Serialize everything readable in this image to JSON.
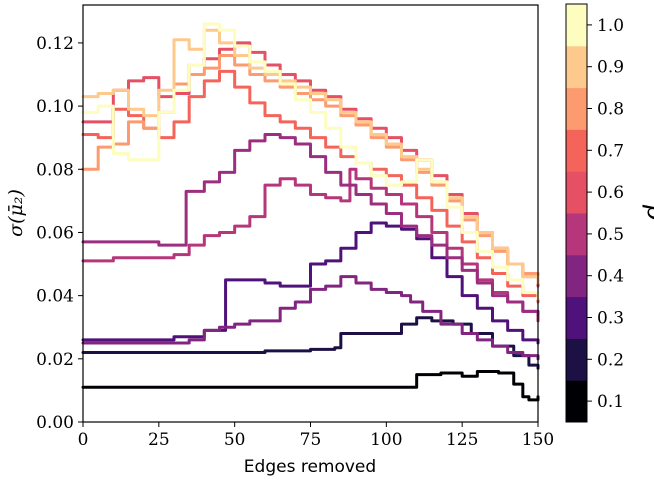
{
  "chart_data": {
    "type": "line",
    "xlabel": "Edges removed",
    "ylabel": "σ(μ̄₂)",
    "xlim": [
      0,
      150
    ],
    "ylim": [
      0,
      0.132
    ],
    "xticks": [
      0,
      25,
      50,
      75,
      100,
      125,
      150
    ],
    "xtick_labels": [
      "0",
      "25",
      "50",
      "75",
      "100",
      "125",
      "150"
    ],
    "yticks": [
      0.0,
      0.02,
      0.04,
      0.06,
      0.08,
      0.1,
      0.12
    ],
    "ytick_labels": [
      "0.00",
      "0.02",
      "0.04",
      "0.06",
      "0.08",
      "0.10",
      "0.12"
    ],
    "grid": false,
    "colormap": "magma",
    "colorbar": {
      "title": "p",
      "labels": [
        "0.1",
        "0.2",
        "0.3",
        "0.4",
        "0.5",
        "0.6",
        "0.7",
        "0.8",
        "0.9",
        "1.0"
      ],
      "colors": [
        "#000004",
        "#1c1044",
        "#4f127b",
        "#812581",
        "#b5367a",
        "#e55064",
        "#f4645a",
        "#fb9b6f",
        "#fec98d",
        "#fcfdbf"
      ]
    },
    "series": [
      {
        "color": "#000004",
        "points": [
          [
            0,
            0.011
          ],
          [
            30,
            0.011
          ],
          [
            60,
            0.011
          ],
          [
            90,
            0.011
          ],
          [
            105,
            0.011
          ],
          [
            110,
            0.015
          ],
          [
            118,
            0.0155
          ],
          [
            125,
            0.0145
          ],
          [
            130,
            0.016
          ],
          [
            137,
            0.0155
          ],
          [
            142,
            0.012
          ],
          [
            145,
            0.008
          ],
          [
            147,
            0.007
          ],
          [
            150,
            0.008
          ]
        ]
      },
      {
        "color": "#1c1044",
        "points": [
          [
            0,
            0.022
          ],
          [
            30,
            0.022
          ],
          [
            50,
            0.022
          ],
          [
            60,
            0.0225
          ],
          [
            75,
            0.023
          ],
          [
            83,
            0.023
          ],
          [
            83,
            0.0235
          ],
          [
            85,
            0.028
          ],
          [
            98,
            0.028
          ],
          [
            105,
            0.031
          ],
          [
            110,
            0.033
          ],
          [
            115,
            0.032
          ],
          [
            122,
            0.031
          ],
          [
            128,
            0.028
          ],
          [
            135,
            0.024
          ],
          [
            142,
            0.021
          ],
          [
            147,
            0.018
          ],
          [
            150,
            0.017
          ]
        ]
      },
      {
        "color": "#4f127b",
        "points": [
          [
            0,
            0.026
          ],
          [
            20,
            0.026
          ],
          [
            25,
            0.026
          ],
          [
            30,
            0.027
          ],
          [
            35,
            0.027
          ],
          [
            40,
            0.029
          ],
          [
            42,
            0.029
          ],
          [
            47,
            0.036
          ],
          [
            47,
            0.045
          ],
          [
            55,
            0.045
          ],
          [
            60,
            0.044
          ],
          [
            65,
            0.043
          ],
          [
            70,
            0.043
          ],
          [
            75,
            0.05
          ],
          [
            80,
            0.051
          ],
          [
            85,
            0.055
          ],
          [
            90,
            0.06
          ],
          [
            95,
            0.063
          ],
          [
            100,
            0.062
          ],
          [
            105,
            0.061
          ],
          [
            110,
            0.058
          ],
          [
            115,
            0.052
          ],
          [
            120,
            0.046
          ],
          [
            125,
            0.04
          ],
          [
            130,
            0.036
          ],
          [
            135,
            0.032
          ],
          [
            140,
            0.029
          ],
          [
            145,
            0.026
          ],
          [
            150,
            0.025
          ]
        ]
      },
      {
        "color": "#812581",
        "points": [
          [
            0,
            0.025
          ],
          [
            20,
            0.025
          ],
          [
            30,
            0.025
          ],
          [
            35,
            0.026
          ],
          [
            40,
            0.029
          ],
          [
            45,
            0.03
          ],
          [
            50,
            0.031
          ],
          [
            55,
            0.032
          ],
          [
            60,
            0.032
          ],
          [
            65,
            0.036
          ],
          [
            70,
            0.038
          ],
          [
            75,
            0.042
          ],
          [
            80,
            0.043
          ],
          [
            85,
            0.046
          ],
          [
            90,
            0.044
          ],
          [
            95,
            0.042
          ],
          [
            100,
            0.041
          ],
          [
            105,
            0.04
          ],
          [
            108,
            0.038
          ],
          [
            112,
            0.035
          ],
          [
            118,
            0.031
          ],
          [
            125,
            0.028
          ],
          [
            130,
            0.026
          ],
          [
            135,
            0.024
          ],
          [
            140,
            0.022
          ],
          [
            145,
            0.021
          ],
          [
            150,
            0.02
          ]
        ]
      },
      {
        "color": "#b5367a",
        "points": [
          [
            0,
            0.051
          ],
          [
            10,
            0.052
          ],
          [
            20,
            0.052
          ],
          [
            25,
            0.052
          ],
          [
            30,
            0.053
          ],
          [
            35,
            0.056
          ],
          [
            40,
            0.059
          ],
          [
            45,
            0.06
          ],
          [
            50,
            0.062
          ],
          [
            55,
            0.065
          ],
          [
            60,
            0.075
          ],
          [
            65,
            0.077
          ],
          [
            70,
            0.075
          ],
          [
            75,
            0.072
          ],
          [
            80,
            0.071
          ],
          [
            85,
            0.07
          ],
          [
            88,
            0.08
          ],
          [
            90,
            0.077
          ],
          [
            95,
            0.074
          ],
          [
            100,
            0.072
          ],
          [
            105,
            0.069
          ],
          [
            110,
            0.065
          ],
          [
            115,
            0.06
          ],
          [
            120,
            0.055
          ],
          [
            125,
            0.05
          ],
          [
            130,
            0.045
          ],
          [
            135,
            0.041
          ],
          [
            140,
            0.038
          ],
          [
            145,
            0.035
          ],
          [
            150,
            0.032
          ]
        ]
      },
      {
        "color": "#9c2e7f",
        "points": [
          [
            0,
            0.057
          ],
          [
            15,
            0.057
          ],
          [
            25,
            0.056
          ],
          [
            34,
            0.056
          ],
          [
            34,
            0.073
          ],
          [
            40,
            0.076
          ],
          [
            45,
            0.079
          ],
          [
            50,
            0.086
          ],
          [
            55,
            0.089
          ],
          [
            60,
            0.091
          ],
          [
            65,
            0.09
          ],
          [
            70,
            0.088
          ],
          [
            75,
            0.084
          ],
          [
            80,
            0.079
          ],
          [
            85,
            0.075
          ],
          [
            90,
            0.072
          ],
          [
            95,
            0.069
          ],
          [
            100,
            0.066
          ],
          [
            105,
            0.062
          ],
          [
            110,
            0.059
          ],
          [
            115,
            0.056
          ],
          [
            120,
            0.052
          ],
          [
            125,
            0.048
          ],
          [
            130,
            0.044
          ],
          [
            135,
            0.04
          ],
          [
            140,
            0.038
          ],
          [
            145,
            0.035
          ],
          [
            150,
            0.034
          ]
        ]
      },
      {
        "color": "#e55064",
        "points": [
          [
            0,
            0.095
          ],
          [
            5,
            0.095
          ],
          [
            10,
            0.105
          ],
          [
            15,
            0.108
          ],
          [
            20,
            0.109
          ],
          [
            25,
            0.103
          ],
          [
            30,
            0.104
          ],
          [
            35,
            0.113
          ],
          [
            40,
            0.115
          ],
          [
            45,
            0.118
          ],
          [
            50,
            0.12
          ],
          [
            55,
            0.117
          ],
          [
            60,
            0.113
          ],
          [
            65,
            0.11
          ],
          [
            70,
            0.108
          ],
          [
            75,
            0.105
          ],
          [
            80,
            0.103
          ],
          [
            85,
            0.099
          ],
          [
            90,
            0.096
          ],
          [
            95,
            0.093
          ],
          [
            100,
            0.09
          ],
          [
            105,
            0.086
          ],
          [
            110,
            0.083
          ],
          [
            115,
            0.078
          ],
          [
            120,
            0.072
          ],
          [
            125,
            0.066
          ],
          [
            130,
            0.06
          ],
          [
            135,
            0.055
          ],
          [
            140,
            0.05
          ],
          [
            145,
            0.046
          ],
          [
            150,
            0.043
          ]
        ]
      },
      {
        "color": "#f4645a",
        "points": [
          [
            0,
            0.091
          ],
          [
            5,
            0.09
          ],
          [
            10,
            0.099
          ],
          [
            15,
            0.097
          ],
          [
            20,
            0.093
          ],
          [
            25,
            0.09
          ],
          [
            30,
            0.095
          ],
          [
            35,
            0.103
          ],
          [
            40,
            0.108
          ],
          [
            45,
            0.111
          ],
          [
            50,
            0.106
          ],
          [
            55,
            0.101
          ],
          [
            60,
            0.097
          ],
          [
            65,
            0.095
          ],
          [
            70,
            0.093
          ],
          [
            75,
            0.09
          ],
          [
            80,
            0.087
          ],
          [
            85,
            0.084
          ],
          [
            90,
            0.082
          ],
          [
            95,
            0.08
          ],
          [
            100,
            0.078
          ],
          [
            105,
            0.075
          ],
          [
            110,
            0.071
          ],
          [
            115,
            0.067
          ],
          [
            120,
            0.062
          ],
          [
            125,
            0.057
          ],
          [
            130,
            0.052
          ],
          [
            135,
            0.047
          ],
          [
            140,
            0.043
          ],
          [
            145,
            0.04
          ],
          [
            150,
            0.038
          ]
        ]
      },
      {
        "color": "#fb9b6f",
        "points": [
          [
            0,
            0.08
          ],
          [
            3,
            0.08
          ],
          [
            5,
            0.087
          ],
          [
            10,
            0.088
          ],
          [
            15,
            0.095
          ],
          [
            20,
            0.093
          ],
          [
            25,
            0.098
          ],
          [
            30,
            0.107
          ],
          [
            35,
            0.11
          ],
          [
            40,
            0.112
          ],
          [
            45,
            0.116
          ],
          [
            50,
            0.113
          ],
          [
            55,
            0.11
          ],
          [
            60,
            0.108
          ],
          [
            65,
            0.106
          ],
          [
            70,
            0.104
          ],
          [
            75,
            0.102
          ],
          [
            80,
            0.1
          ],
          [
            85,
            0.097
          ],
          [
            90,
            0.094
          ],
          [
            95,
            0.09
          ],
          [
            100,
            0.087
          ],
          [
            105,
            0.083
          ],
          [
            110,
            0.079
          ],
          [
            115,
            0.075
          ],
          [
            120,
            0.07
          ],
          [
            125,
            0.064
          ],
          [
            130,
            0.059
          ],
          [
            135,
            0.054
          ],
          [
            140,
            0.05
          ],
          [
            145,
            0.047
          ],
          [
            150,
            0.046
          ]
        ]
      },
      {
        "color": "#fec98d",
        "points": [
          [
            0,
            0.103
          ],
          [
            5,
            0.104
          ],
          [
            10,
            0.105
          ],
          [
            15,
            0.099
          ],
          [
            20,
            0.097
          ],
          [
            25,
            0.105
          ],
          [
            30,
            0.121
          ],
          [
            35,
            0.118
          ],
          [
            40,
            0.124
          ],
          [
            45,
            0.12
          ],
          [
            50,
            0.116
          ],
          [
            55,
            0.112
          ],
          [
            60,
            0.11
          ],
          [
            65,
            0.108
          ],
          [
            70,
            0.106
          ],
          [
            75,
            0.104
          ],
          [
            80,
            0.102
          ],
          [
            85,
            0.098
          ],
          [
            90,
            0.095
          ],
          [
            95,
            0.091
          ],
          [
            100,
            0.088
          ],
          [
            105,
            0.084
          ],
          [
            110,
            0.08
          ],
          [
            115,
            0.076
          ],
          [
            120,
            0.071
          ],
          [
            125,
            0.065
          ],
          [
            130,
            0.06
          ],
          [
            135,
            0.055
          ],
          [
            140,
            0.05
          ],
          [
            145,
            0.046
          ],
          [
            150,
            0.044
          ]
        ]
      },
      {
        "color": "#fcfdbf",
        "points": [
          [
            0,
            0.098
          ],
          [
            5,
            0.1
          ],
          [
            10,
            0.085
          ],
          [
            15,
            0.083
          ],
          [
            20,
            0.083
          ],
          [
            25,
            0.098
          ],
          [
            30,
            0.105
          ],
          [
            35,
            0.113
          ],
          [
            40,
            0.126
          ],
          [
            45,
            0.124
          ],
          [
            50,
            0.119
          ],
          [
            55,
            0.114
          ],
          [
            60,
            0.111
          ],
          [
            65,
            0.107
          ],
          [
            70,
            0.102
          ],
          [
            75,
            0.098
          ],
          [
            80,
            0.093
          ],
          [
            85,
            0.087
          ],
          [
            90,
            0.082
          ],
          [
            95,
            0.078
          ],
          [
            100,
            0.075
          ],
          [
            105,
            0.076
          ],
          [
            110,
            0.083
          ],
          [
            115,
            0.076
          ],
          [
            120,
            0.068
          ],
          [
            125,
            0.06
          ],
          [
            130,
            0.054
          ],
          [
            135,
            0.049
          ],
          [
            140,
            0.045
          ],
          [
            145,
            0.041
          ],
          [
            150,
            0.039
          ]
        ]
      }
    ]
  }
}
